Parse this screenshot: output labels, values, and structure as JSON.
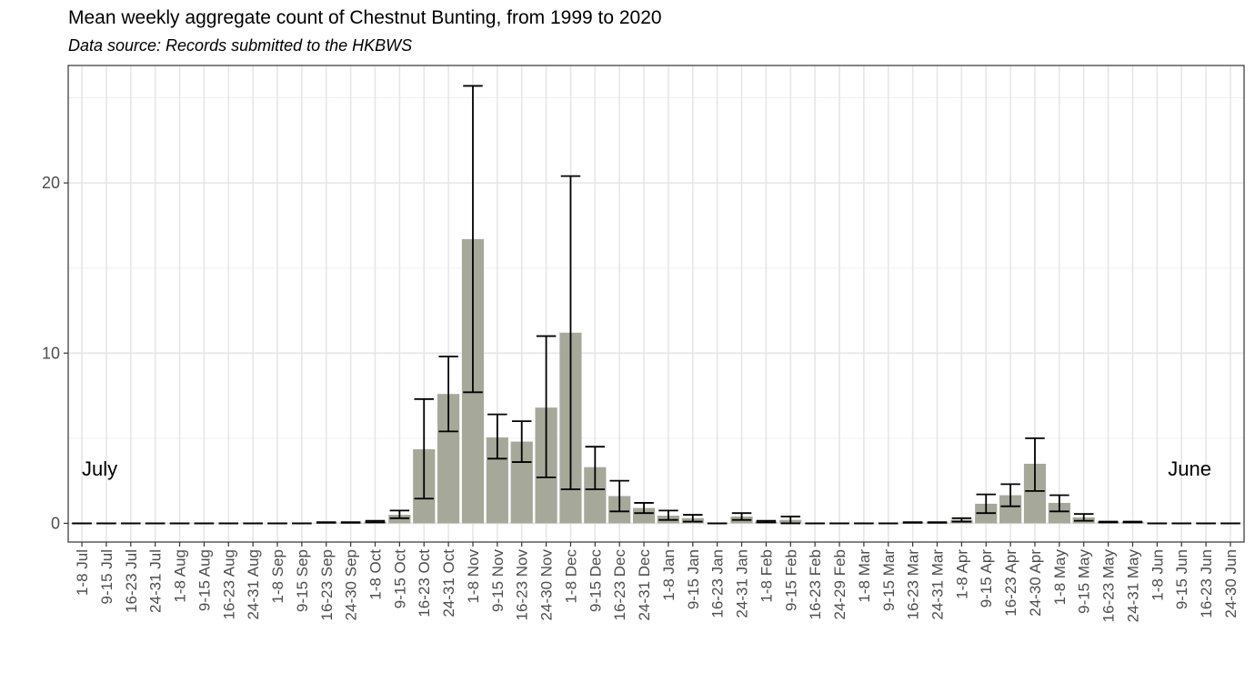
{
  "chart_data": {
    "type": "bar",
    "title": "Mean weekly aggregate count of Chestnut Bunting, from 1999 to 2020",
    "subtitle": "Data source: Records submitted to the HKBWS",
    "xlabel": "",
    "ylabel": "",
    "ylim": [
      -1.1,
      26.9
    ],
    "yticks": [
      "0",
      "10",
      "20"
    ],
    "grid": true,
    "annotations": [
      "July",
      "June"
    ],
    "bar_color": "#a6a89a",
    "categories": [
      "1-8 Jul",
      "9-15 Jul",
      "16-23 Jul",
      "24-31 Jul",
      "1-8 Aug",
      "9-15 Aug",
      "16-23 Aug",
      "24-31 Aug",
      "1-8 Sep",
      "9-15 Sep",
      "16-23 Sep",
      "24-30 Sep",
      "1-8 Oct",
      "9-15 Oct",
      "16-23 Oct",
      "24-31 Oct",
      "1-8 Nov",
      "9-15 Nov",
      "16-23 Nov",
      "24-30 Nov",
      "1-8 Dec",
      "9-15 Dec",
      "16-23 Dec",
      "24-31 Dec",
      "1-8 Jan",
      "9-15 Jan",
      "16-23 Jan",
      "24-31 Jan",
      "1-8 Feb",
      "9-15 Feb",
      "16-23 Feb",
      "24-29 Feb",
      "1-8 Mar",
      "9-15 Mar",
      "16-23 Mar",
      "24-31 Mar",
      "1-8 Apr",
      "9-15 Apr",
      "16-23 Apr",
      "24-30 Apr",
      "1-8 May",
      "9-15 May",
      "16-23 May",
      "24-31 May",
      "1-8 Jun",
      "9-15 Jun",
      "16-23 Jun",
      "24-30 Jun"
    ],
    "values": [
      0,
      0,
      0,
      0,
      0,
      0,
      0,
      0,
      0,
      0,
      0.05,
      0.05,
      0.1,
      0.5,
      4.35,
      7.6,
      16.7,
      5.05,
      4.8,
      6.8,
      11.2,
      3.3,
      1.6,
      0.9,
      0.45,
      0.3,
      0,
      0.4,
      0.1,
      0.2,
      0,
      0,
      0,
      0,
      0.05,
      0.05,
      0.2,
      1.15,
      1.65,
      3.5,
      1.2,
      0.35,
      0.08,
      0.08,
      0,
      0,
      0,
      0
    ],
    "error_lower": [
      0,
      0,
      0,
      0,
      0,
      0,
      0,
      0,
      0,
      0,
      0.03,
      0.03,
      0.05,
      0.3,
      1.45,
      5.4,
      7.7,
      3.8,
      3.6,
      2.7,
      2.0,
      2.0,
      0.7,
      0.6,
      0.2,
      0.1,
      0,
      0.2,
      0.05,
      0.0,
      0,
      0,
      0,
      0,
      0.03,
      0.03,
      0.1,
      0.6,
      1.0,
      1.9,
      0.7,
      0.15,
      0.05,
      0.05,
      0,
      0,
      0,
      0
    ],
    "error_upper": [
      0,
      0,
      0,
      0,
      0,
      0,
      0,
      0,
      0,
      0,
      0.07,
      0.07,
      0.15,
      0.75,
      7.3,
      9.8,
      25.7,
      6.4,
      6.0,
      11.0,
      20.4,
      4.5,
      2.5,
      1.2,
      0.75,
      0.5,
      0,
      0.6,
      0.15,
      0.4,
      0,
      0,
      0,
      0,
      0.07,
      0.07,
      0.3,
      1.7,
      2.3,
      5.0,
      1.65,
      0.55,
      0.1,
      0.1,
      0,
      0,
      0,
      0
    ]
  }
}
